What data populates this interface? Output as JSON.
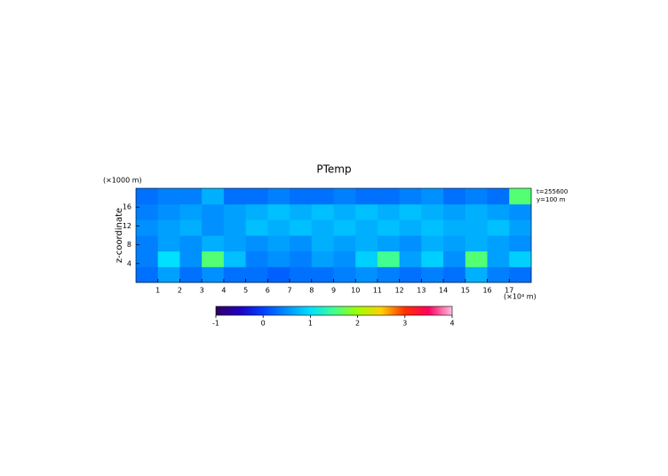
{
  "chart_data": {
    "type": "heatmap",
    "title": "PTemp",
    "y_label": "z-coordinate",
    "y_unit": "(×1000 m)",
    "x_unit": "(×10⁴ m)",
    "annotations": [
      "t=255600",
      "y=100 m"
    ],
    "x": [
      0.5,
      1.5,
      2.5,
      3.5,
      4.5,
      5.5,
      6.5,
      7.5,
      8.5,
      9.5,
      10.5,
      11.5,
      12.5,
      13.5,
      14.5,
      15.5,
      16.5,
      17.5
    ],
    "y": [
      1.67,
      5,
      8.33,
      11.67,
      15,
      18.33
    ],
    "z": [
      [
        0.3,
        0.6,
        0.3,
        0.5,
        0.3,
        0.3,
        0.2,
        0.3,
        0.3,
        0.4,
        0.5,
        0.4,
        0.3,
        0.4,
        0.3,
        0.7,
        0.4,
        0.3
      ],
      [
        0.4,
        1.0,
        0.5,
        1.6,
        0.8,
        0.4,
        0.5,
        0.4,
        0.6,
        0.5,
        0.9,
        1.5,
        0.6,
        0.9,
        0.5,
        1.6,
        0.6,
        0.9
      ],
      [
        0.4,
        0.6,
        0.5,
        0.7,
        0.6,
        0.5,
        0.6,
        0.5,
        0.7,
        0.6,
        0.7,
        0.6,
        0.5,
        0.7,
        0.6,
        0.7,
        0.6,
        0.5
      ],
      [
        0.5,
        0.6,
        0.7,
        0.5,
        0.6,
        0.8,
        0.7,
        0.8,
        0.7,
        0.8,
        0.7,
        0.8,
        0.7,
        0.8,
        0.7,
        0.7,
        0.8,
        0.6
      ],
      [
        0.4,
        0.5,
        0.6,
        0.5,
        0.6,
        0.7,
        0.8,
        0.7,
        0.8,
        0.7,
        0.8,
        0.7,
        0.8,
        0.7,
        0.6,
        0.7,
        0.6,
        0.5
      ],
      [
        0.3,
        0.4,
        0.4,
        0.7,
        0.3,
        0.3,
        0.4,
        0.3,
        0.3,
        0.4,
        0.3,
        0.3,
        0.4,
        0.5,
        0.3,
        0.4,
        0.3,
        1.6
      ]
    ],
    "xlim": [
      0,
      18
    ],
    "xticks": [
      1,
      2,
      3,
      4,
      5,
      6,
      7,
      8,
      9,
      10,
      11,
      12,
      13,
      14,
      15,
      16,
      17
    ],
    "ylim": [
      0,
      20
    ],
    "yticks": [
      4,
      8,
      12,
      16
    ],
    "zlim": [
      -1,
      4
    ],
    "zticks": [
      -1,
      0,
      1,
      2,
      3,
      4
    ],
    "colorscale": [
      "#300060",
      "#2000c0",
      "#0040ff",
      "#0090ff",
      "#00e0ff",
      "#40ff90",
      "#a0ff00",
      "#ffd000",
      "#ff3000",
      "#ff0060",
      "#ffc0e0"
    ]
  }
}
